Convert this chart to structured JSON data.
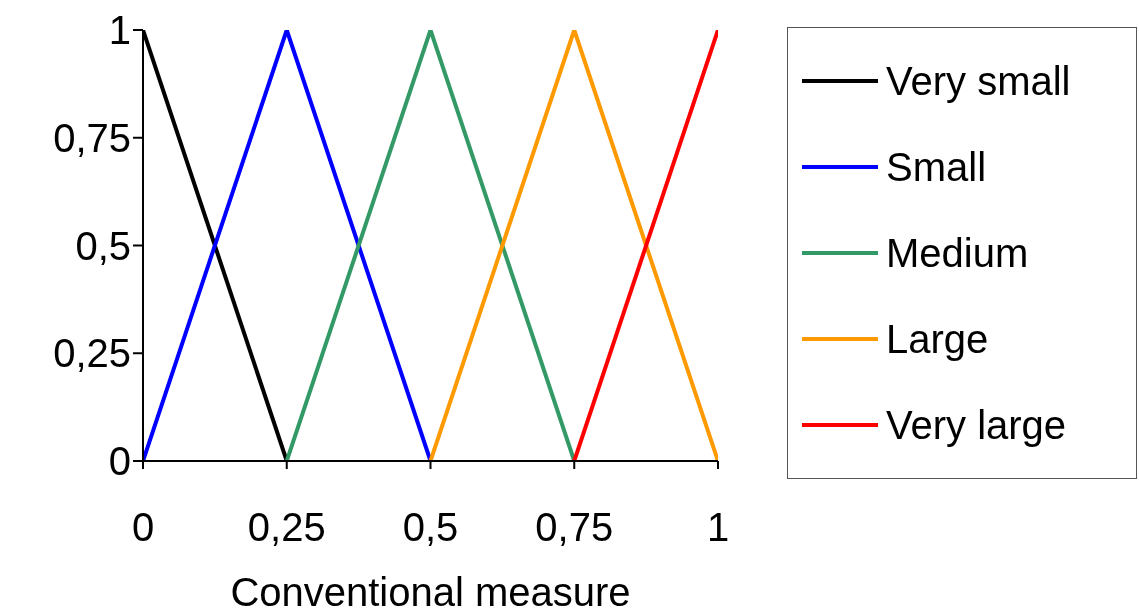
{
  "chart_data": {
    "type": "line",
    "xlabel": "Conventional measure",
    "xlim": [
      0,
      1
    ],
    "xticks": [
      0,
      {
        "value": 0.25,
        "label": "0,25"
      },
      {
        "value": 0.5,
        "label": "0,5"
      },
      {
        "value": 0.75,
        "label": "0,75"
      },
      1
    ],
    "ylim": [
      0,
      1
    ],
    "yticks": [
      0,
      {
        "value": 0.25,
        "label": "0,25"
      },
      {
        "value": 0.5,
        "label": "0,5"
      },
      {
        "value": 0.75,
        "label": "0,75"
      },
      1
    ],
    "grid": false,
    "legend": "right",
    "marker": "none",
    "line_style": "solid",
    "series": [
      {
        "name": "Very small",
        "color": "#000000",
        "x": [
          0,
          0.25
        ],
        "values": [
          1,
          0
        ]
      },
      {
        "name": "Small",
        "color": "#0000ff",
        "x": [
          0,
          0.25,
          0.5
        ],
        "values": [
          0,
          1,
          0
        ]
      },
      {
        "name": "Medium",
        "color": "#339966",
        "x": [
          0.25,
          0.5,
          0.75
        ],
        "values": [
          0,
          1,
          0
        ]
      },
      {
        "name": "Large",
        "color": "#ff9900",
        "x": [
          0.5,
          0.75,
          1
        ],
        "values": [
          0,
          1,
          0
        ]
      },
      {
        "name": "Very large",
        "color": "#ff0000",
        "x": [
          0.75,
          1
        ],
        "values": [
          0,
          1
        ]
      }
    ]
  }
}
